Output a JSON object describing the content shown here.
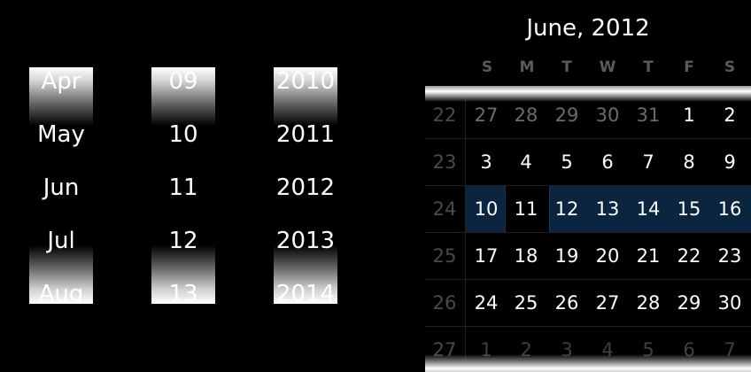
{
  "spinners": {
    "month": [
      "Apr",
      "May",
      "Jun",
      "Jul",
      "Aug"
    ],
    "day": [
      "09",
      "10",
      "11",
      "12",
      "13"
    ],
    "year": [
      "2010",
      "2011",
      "2012",
      "2013",
      "2014"
    ]
  },
  "calendar": {
    "title": "June, 2012",
    "weekdays": [
      "S",
      "M",
      "T",
      "W",
      "T",
      "F",
      "S"
    ],
    "weeks": [
      {
        "num": "22",
        "days": [
          "27",
          "28",
          "29",
          "30",
          "31",
          "1",
          "2"
        ]
      },
      {
        "num": "23",
        "days": [
          "3",
          "4",
          "5",
          "6",
          "7",
          "8",
          "9"
        ]
      },
      {
        "num": "24",
        "days": [
          "10",
          "11",
          "12",
          "13",
          "14",
          "15",
          "16"
        ]
      },
      {
        "num": "25",
        "days": [
          "17",
          "18",
          "19",
          "20",
          "21",
          "22",
          "23"
        ]
      },
      {
        "num": "26",
        "days": [
          "24",
          "25",
          "26",
          "27",
          "28",
          "29",
          "30"
        ]
      },
      {
        "num": "27",
        "days": [
          "1",
          "2",
          "3",
          "4",
          "5",
          "6",
          "7"
        ]
      }
    ],
    "selected_day": "11",
    "highlight_color": "#0b2540"
  }
}
